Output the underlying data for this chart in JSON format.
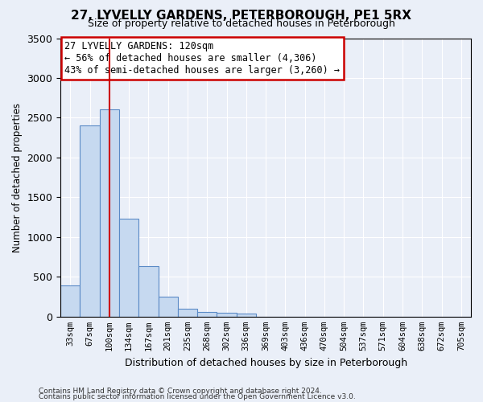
{
  "title": "27, LYVELLY GARDENS, PETERBOROUGH, PE1 5RX",
  "subtitle": "Size of property relative to detached houses in Peterborough",
  "xlabel": "Distribution of detached houses by size in Peterborough",
  "ylabel": "Number of detached properties",
  "categories": [
    "33sqm",
    "67sqm",
    "100sqm",
    "134sqm",
    "167sqm",
    "201sqm",
    "235sqm",
    "268sqm",
    "302sqm",
    "336sqm",
    "369sqm",
    "403sqm",
    "436sqm",
    "470sqm",
    "504sqm",
    "537sqm",
    "571sqm",
    "604sqm",
    "638sqm",
    "672sqm",
    "705sqm"
  ],
  "values": [
    390,
    2400,
    2610,
    1230,
    630,
    250,
    100,
    60,
    50,
    35,
    0,
    0,
    0,
    0,
    0,
    0,
    0,
    0,
    0,
    0,
    0
  ],
  "bar_color": "#c6d9f0",
  "bar_edge_color": "#5a8ac6",
  "annotation_text": "27 LYVELLY GARDENS: 120sqm\n← 56% of detached houses are smaller (4,306)\n43% of semi-detached houses are larger (3,260) →",
  "annotation_box_color": "#ffffff",
  "annotation_box_edge": "#cc0000",
  "redline_x": 2.0,
  "ylim": [
    0,
    3500
  ],
  "yticks": [
    0,
    500,
    1000,
    1500,
    2000,
    2500,
    3000,
    3500
  ],
  "footer1": "Contains HM Land Registry data © Crown copyright and database right 2024.",
  "footer2": "Contains public sector information licensed under the Open Government Licence v3.0.",
  "bg_color": "#eaeff8",
  "plot_bg_color": "#eaeff8"
}
